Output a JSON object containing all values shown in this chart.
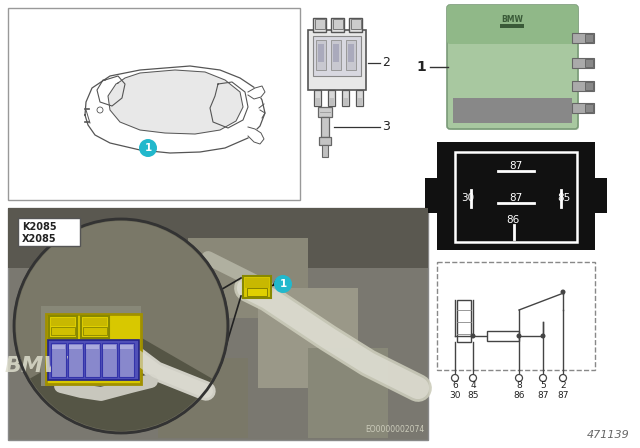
{
  "bg_color": "#ffffff",
  "fig_width": 6.4,
  "fig_height": 4.48,
  "dpi": 100,
  "part_number": "471139",
  "relay_green": "#a8c8a0",
  "relay_green_dark": "#88aa80",
  "relay_green_top": "#90b888",
  "engine_bg": "#8a8878",
  "engine_bg2": "#9a9888",
  "circle_bg": "#7a7868",
  "car_box_edge": "#888888",
  "k2085": "K2085",
  "x2085": "X2085",
  "eo_code": "EO0000002074",
  "cyan": "#22b8cc",
  "black_diag": "#1a1a1a",
  "white": "#ffffff",
  "gray_light": "#dddddd",
  "pin_box_bg": "#111111",
  "circuit_bg": "#ffffff"
}
